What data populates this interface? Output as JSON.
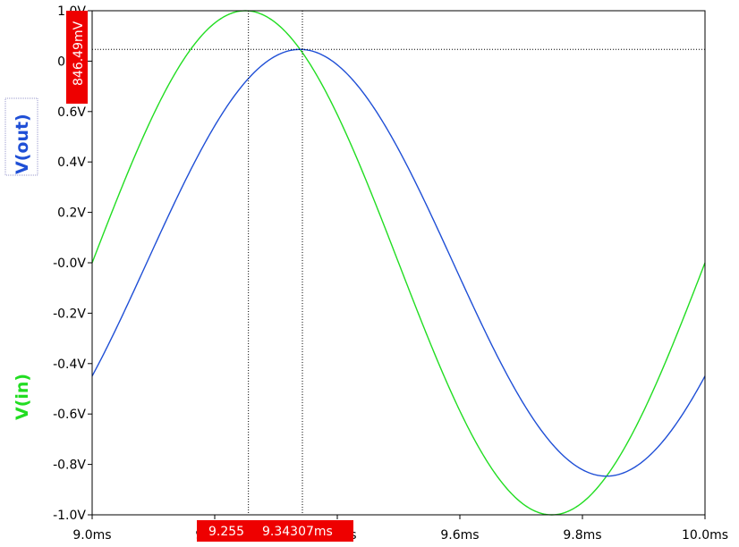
{
  "chart_data": {
    "type": "line",
    "x_unit": "ms",
    "y_unit": "V",
    "xlim": [
      9.0,
      10.0
    ],
    "ylim": [
      -1.0,
      1.0
    ],
    "x_ticks": [
      9.0,
      9.2,
      9.4,
      9.6,
      9.8,
      10.0
    ],
    "y_ticks": [
      1.0,
      0.8,
      0.6,
      0.4,
      0.2,
      0.0,
      -0.2,
      -0.4,
      -0.6,
      -0.8,
      -1.0
    ],
    "x_tick_labels": [
      "9.0ms",
      "9.2ms",
      "9.4ms",
      "9.6ms",
      "9.8ms",
      "10.0ms"
    ],
    "y_tick_labels": [
      "1.0V",
      "0.8V",
      "0.6V",
      "0.4V",
      "0.2V",
      "-0.0V",
      "-0.2V",
      "-0.4V",
      "-0.6V",
      "-0.8V",
      "-1.0V"
    ],
    "series": [
      {
        "name": "V(in)",
        "color": "#22dd22",
        "x": [
          9.0,
          9.05,
          9.1,
          9.15,
          9.2,
          9.25,
          9.3,
          9.35,
          9.4,
          9.45,
          9.5,
          9.55,
          9.6,
          9.65,
          9.7,
          9.75,
          9.8,
          9.85,
          9.9,
          9.95,
          10.0
        ],
        "y": [
          0.0,
          0.309,
          0.588,
          0.809,
          0.951,
          1.0,
          0.951,
          0.809,
          0.588,
          0.309,
          0.0,
          -0.309,
          -0.588,
          -0.809,
          -0.951,
          -1.0,
          -0.951,
          -0.809,
          -0.588,
          -0.309,
          0.0
        ]
      },
      {
        "name": "V(out)",
        "color": "#1f4fd6",
        "x": [
          9.0,
          9.05,
          9.1,
          9.15,
          9.2,
          9.25,
          9.3,
          9.343,
          9.4,
          9.45,
          9.5,
          9.55,
          9.6,
          9.65,
          9.7,
          9.75,
          9.8,
          9.843,
          9.9,
          9.95,
          10.0
        ],
        "y": [
          -0.448,
          -0.19,
          0.079,
          0.338,
          0.565,
          0.733,
          0.823,
          0.846,
          0.812,
          0.706,
          0.528,
          0.299,
          0.042,
          -0.222,
          -0.469,
          -0.671,
          -0.808,
          -0.846,
          -0.809,
          -0.681,
          -0.448
        ]
      }
    ],
    "cursors": [
      {
        "x": 9.255,
        "label": "9.255"
      },
      {
        "x": 9.34307,
        "label": "9.34307ms"
      }
    ],
    "horizontal_cursor": {
      "y": 0.84649,
      "label": "846.49mV"
    },
    "grid": false
  }
}
